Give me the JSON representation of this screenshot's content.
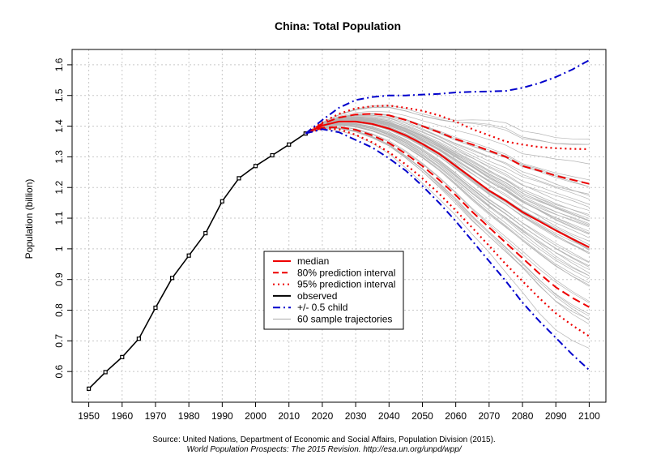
{
  "chart_data": {
    "type": "line",
    "title": "China: Total Population",
    "ylabel": "Population (billion)",
    "xlabel": "",
    "xlim": [
      1945,
      2105
    ],
    "ylim": [
      0.5,
      1.65
    ],
    "grid": true,
    "x_ticks": [
      1950,
      1960,
      1970,
      1980,
      1990,
      2000,
      2010,
      2020,
      2030,
      2040,
      2050,
      2060,
      2070,
      2080,
      2090,
      2100
    ],
    "y_ticks": [
      0.6,
      0.7,
      0.8,
      0.9,
      1.0,
      1.1,
      1.2,
      1.3,
      1.4,
      1.5,
      1.6
    ],
    "y_tick_labels": [
      "0.6",
      "0.7",
      "0.8",
      "0.9",
      "1",
      "1.1",
      "1.2",
      "1.3",
      "1.4",
      "1.5",
      "1.6"
    ],
    "legend_position": "center-left",
    "series": [
      {
        "name": "observed",
        "color": "#000000",
        "style": "solid",
        "markers": true,
        "x": [
          1950,
          1955,
          1960,
          1965,
          1970,
          1975,
          1980,
          1985,
          1990,
          1995,
          2000,
          2005,
          2010,
          2015
        ],
        "y": [
          0.544,
          0.598,
          0.647,
          0.707,
          0.808,
          0.905,
          0.978,
          1.051,
          1.155,
          1.23,
          1.27,
          1.305,
          1.34,
          1.376
        ]
      },
      {
        "name": "median",
        "color": "#ee0000",
        "style": "solid",
        "x": [
          2015,
          2020,
          2025,
          2030,
          2035,
          2040,
          2045,
          2050,
          2055,
          2060,
          2065,
          2070,
          2075,
          2080,
          2085,
          2090,
          2095,
          2100
        ],
        "y": [
          1.376,
          1.402,
          1.415,
          1.415,
          1.407,
          1.392,
          1.37,
          1.342,
          1.31,
          1.27,
          1.23,
          1.19,
          1.157,
          1.12,
          1.09,
          1.06,
          1.032,
          1.005
        ]
      },
      {
        "name": "80% prediction interval",
        "color": "#ee0000",
        "style": "dashed",
        "upper": {
          "x": [
            2015,
            2020,
            2025,
            2030,
            2035,
            2040,
            2045,
            2050,
            2055,
            2060,
            2065,
            2070,
            2075,
            2080,
            2085,
            2090,
            2095,
            2100
          ],
          "y": [
            1.376,
            1.408,
            1.428,
            1.438,
            1.44,
            1.435,
            1.42,
            1.4,
            1.38,
            1.358,
            1.34,
            1.32,
            1.3,
            1.27,
            1.255,
            1.238,
            1.225,
            1.212
          ]
        },
        "lower": {
          "x": [
            2015,
            2020,
            2025,
            2030,
            2035,
            2040,
            2045,
            2050,
            2055,
            2060,
            2065,
            2070,
            2075,
            2080,
            2085,
            2090,
            2095,
            2100
          ],
          "y": [
            1.376,
            1.395,
            1.397,
            1.388,
            1.37,
            1.345,
            1.31,
            1.27,
            1.225,
            1.175,
            1.12,
            1.07,
            1.02,
            0.97,
            0.92,
            0.875,
            0.84,
            0.81
          ]
        }
      },
      {
        "name": "95% prediction interval",
        "color": "#ee0000",
        "style": "dotted",
        "upper": {
          "x": [
            2015,
            2020,
            2025,
            2030,
            2035,
            2040,
            2045,
            2050,
            2055,
            2060,
            2065,
            2070,
            2075,
            2080,
            2085,
            2090,
            2095,
            2100
          ],
          "y": [
            1.376,
            1.412,
            1.44,
            1.458,
            1.465,
            1.467,
            1.46,
            1.45,
            1.435,
            1.415,
            1.39,
            1.37,
            1.35,
            1.34,
            1.332,
            1.328,
            1.326,
            1.325
          ]
        },
        "lower": {
          "x": [
            2015,
            2020,
            2025,
            2030,
            2035,
            2040,
            2045,
            2050,
            2055,
            2060,
            2065,
            2070,
            2075,
            2080,
            2085,
            2090,
            2095,
            2100
          ],
          "y": [
            1.376,
            1.392,
            1.39,
            1.372,
            1.347,
            1.315,
            1.275,
            1.23,
            1.18,
            1.125,
            1.068,
            1.01,
            0.95,
            0.895,
            0.84,
            0.79,
            0.75,
            0.715
          ]
        }
      },
      {
        "name": "+/- 0.5 child",
        "color": "#0000cc",
        "style": "dashdot",
        "upper": {
          "x": [
            2015,
            2020,
            2025,
            2030,
            2035,
            2040,
            2045,
            2050,
            2055,
            2060,
            2065,
            2070,
            2075,
            2080,
            2085,
            2090,
            2095,
            2100
          ],
          "y": [
            1.376,
            1.42,
            1.46,
            1.485,
            1.495,
            1.5,
            1.5,
            1.503,
            1.505,
            1.51,
            1.512,
            1.513,
            1.515,
            1.525,
            1.54,
            1.56,
            1.585,
            1.615
          ]
        },
        "lower": {
          "x": [
            2015,
            2020,
            2025,
            2030,
            2035,
            2040,
            2045,
            2050,
            2055,
            2060,
            2065,
            2070,
            2075,
            2080,
            2085,
            2090,
            2095,
            2100
          ],
          "y": [
            1.376,
            1.39,
            1.38,
            1.355,
            1.33,
            1.295,
            1.255,
            1.205,
            1.15,
            1.09,
            1.025,
            0.96,
            0.895,
            0.825,
            0.765,
            0.71,
            0.655,
            0.605
          ]
        }
      },
      {
        "name": "60 sample trajectories",
        "color": "#aaaaaa",
        "style": "thin"
      }
    ]
  },
  "legend": {
    "items": [
      {
        "label": "median",
        "color": "#ee0000",
        "style": "solid"
      },
      {
        "label": "80% prediction interval",
        "color": "#ee0000",
        "style": "dashed"
      },
      {
        "label": "95% prediction interval",
        "color": "#ee0000",
        "style": "dotted"
      },
      {
        "label": "observed",
        "color": "#000000",
        "style": "solid"
      },
      {
        "label": "+/- 0.5 child",
        "color": "#0000cc",
        "style": "dashdot"
      },
      {
        "label": "60 sample trajectories",
        "color": "#aaaaaa",
        "style": "thin"
      }
    ]
  },
  "source": {
    "line1": "Source: United Nations, Department of Economic and Social Affairs, Population Division (2015).",
    "line2": "World Population Prospects: The 2015 Revision. http://esa.un.org/unpd/wpp/"
  }
}
